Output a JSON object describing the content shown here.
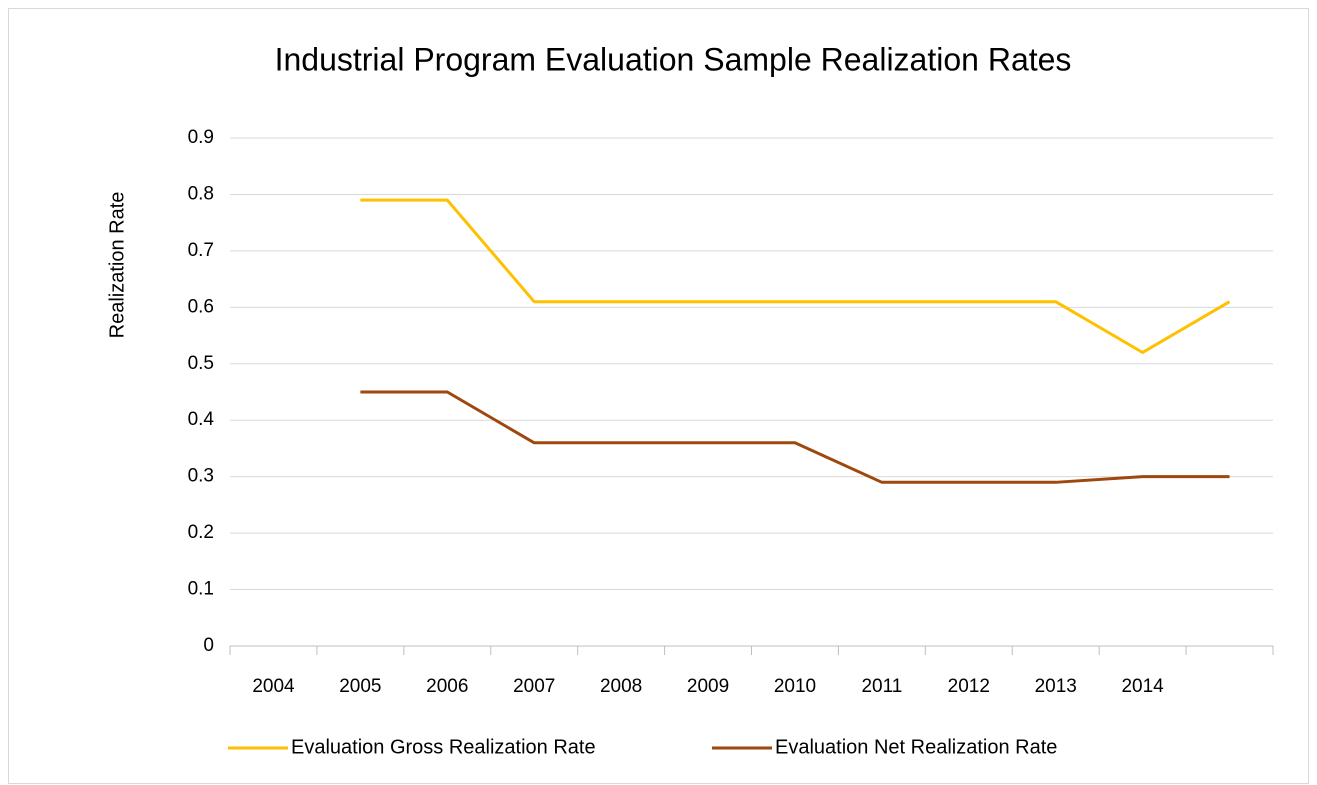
{
  "chart_data": {
    "type": "line",
    "title": "Industrial Program Evaluation Sample Realization Rates",
    "y_label": "Realization Rate",
    "categories": [
      "2004",
      "2005",
      "2006",
      "2007",
      "2008",
      "2009",
      "2010",
      "2011",
      "2012",
      "2013",
      "2014",
      null
    ],
    "series": [
      {
        "name": "Evaluation Gross Realization Rate",
        "color": "#FFC000",
        "values": [
          null,
          0.79,
          0.79,
          0.61,
          0.61,
          0.61,
          0.61,
          0.61,
          0.61,
          0.61,
          0.52,
          0.61
        ]
      },
      {
        "name": "Evaluation Net Realization Rate",
        "color": "#9E480E",
        "values": [
          null,
          0.45,
          0.45,
          0.36,
          0.36,
          0.36,
          0.36,
          0.29,
          0.29,
          0.29,
          0.3,
          0.3
        ]
      }
    ],
    "ylim": [
      0,
      0.9
    ],
    "yticks": [
      0,
      0.1,
      0.2,
      0.3,
      0.4,
      0.5,
      0.6,
      0.7,
      0.8,
      0.9
    ],
    "grid": true,
    "legend": "bottom"
  }
}
